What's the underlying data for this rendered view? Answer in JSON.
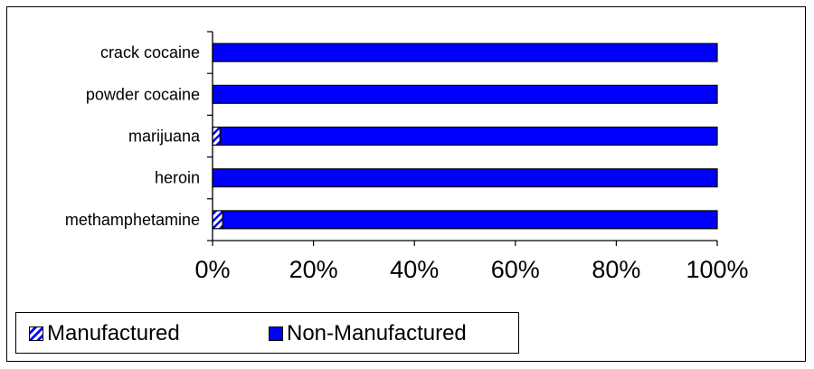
{
  "chart_data": {
    "type": "bar",
    "orientation": "horizontal",
    "stacked": "percent",
    "categories": [
      "crack cocaine",
      "powder cocaine",
      "marijuana",
      "heroin",
      "methamphetamine"
    ],
    "series": [
      {
        "name": "Manufactured",
        "values": [
          0,
          0,
          1.5,
          0,
          2
        ],
        "color": "#0000FF",
        "pattern": "hatched"
      },
      {
        "name": "Non-Manufactured",
        "values": [
          100,
          100,
          98.5,
          100,
          98
        ],
        "color": "#0000FF",
        "pattern": "solid"
      }
    ],
    "xticks": [
      "0%",
      "20%",
      "40%",
      "60%",
      "80%",
      "100%"
    ],
    "xlim": [
      0,
      100
    ],
    "grid": false,
    "legend_position": "bottom-left",
    "title": "",
    "xlabel": "",
    "ylabel": ""
  }
}
